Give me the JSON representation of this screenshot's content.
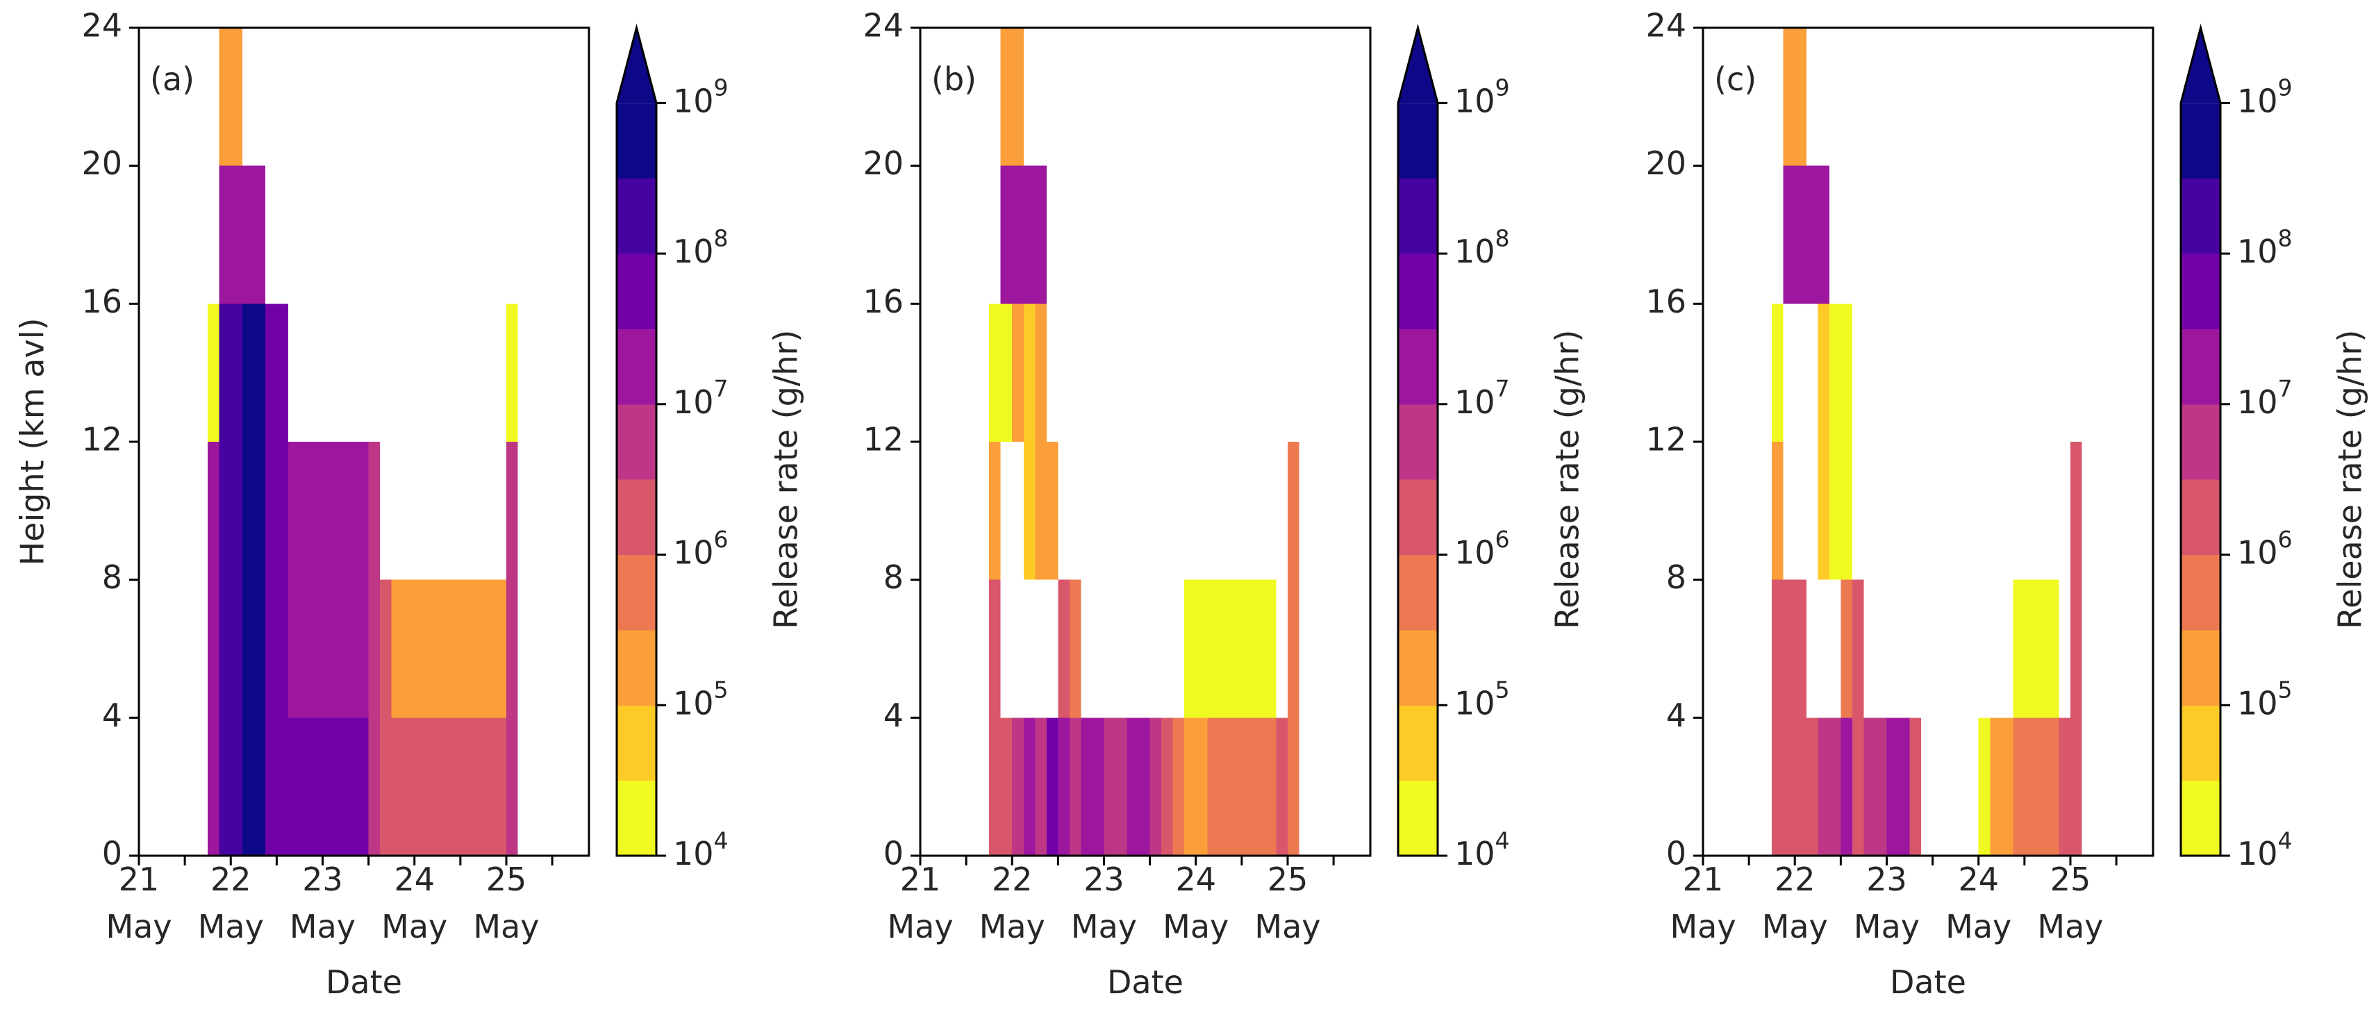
{
  "figure": {
    "cmap_stops": [
      "#f0f921",
      "#fdca26",
      "#fb9f3a",
      "#ed7953",
      "#d8576b",
      "#bd3786",
      "#9c179e",
      "#7201a8",
      "#46039f",
      "#0d0887"
    ]
  },
  "chart_data": [
    {
      "type": "heatmap",
      "panel_label": "(a)",
      "xlabel": "Date",
      "ylabel": "Height (km avl)",
      "xticks": [
        [
          "21",
          "May"
        ],
        [
          "22",
          "May"
        ],
        [
          "23",
          "May"
        ],
        [
          "24",
          "May"
        ],
        [
          "25",
          "May"
        ]
      ],
      "yticks": [
        "0",
        "4",
        "8",
        "12",
        "16",
        "20",
        "24"
      ],
      "xlim": [
        21.0,
        25.9
      ],
      "ylim": [
        0,
        24
      ],
      "colorbar_label": "Release rate (g/hr)",
      "colorbar_ticks": [
        [
          "10",
          "4"
        ],
        [
          "10",
          "5"
        ],
        [
          "10",
          "6"
        ],
        [
          "10",
          "7"
        ],
        [
          "10",
          "8"
        ],
        [
          "10",
          "9"
        ]
      ],
      "colorbar_scale": "log",
      "colorbar_range": [
        10000,
        1000000000
      ],
      "colorbar_extend": "max",
      "cells": [
        {
          "x0": 21.75,
          "x1": 21.875,
          "y0": 0,
          "y1": 12,
          "rate": 30000000
        },
        {
          "x0": 21.75,
          "x1": 21.875,
          "y0": 12,
          "y1": 16,
          "rate": 10000
        },
        {
          "x0": 21.875,
          "x1": 22.125,
          "y0": 0,
          "y1": 16,
          "rate": 300000000
        },
        {
          "x0": 22.125,
          "x1": 22.375,
          "y0": 0,
          "y1": 16,
          "rate": 500000000
        },
        {
          "x0": 21.875,
          "x1": 22.375,
          "y0": 16,
          "y1": 20,
          "rate": 20000000
        },
        {
          "x0": 21.875,
          "x1": 22.125,
          "y0": 20,
          "y1": 24,
          "rate": 100000
        },
        {
          "x0": 22.375,
          "x1": 22.625,
          "y0": 0,
          "y1": 16,
          "rate": 50000000
        },
        {
          "x0": 22.625,
          "x1": 23.5,
          "y0": 0,
          "y1": 4,
          "rate": 40000000
        },
        {
          "x0": 22.625,
          "x1": 23.5,
          "y0": 4,
          "y1": 12,
          "rate": 20000000
        },
        {
          "x0": 23.5,
          "x1": 23.625,
          "y0": 0,
          "y1": 12,
          "rate": 5000000
        },
        {
          "x0": 23.625,
          "x1": 23.75,
          "y0": 0,
          "y1": 8,
          "rate": 2000000
        },
        {
          "x0": 23.75,
          "x1": 25.0,
          "y0": 0,
          "y1": 4,
          "rate": 2000000
        },
        {
          "x0": 23.75,
          "x1": 25.0,
          "y0": 4,
          "y1": 8,
          "rate": 150000
        },
        {
          "x0": 25.0,
          "x1": 25.125,
          "y0": 0,
          "y1": 12,
          "rate": 5000000
        },
        {
          "x0": 25.0,
          "x1": 25.125,
          "y0": 12,
          "y1": 16,
          "rate": 10000
        }
      ]
    },
    {
      "type": "heatmap",
      "panel_label": "(b)",
      "xlabel": "Date",
      "ylabel": "",
      "xticks": [
        [
          "21",
          "May"
        ],
        [
          "22",
          "May"
        ],
        [
          "23",
          "May"
        ],
        [
          "24",
          "May"
        ],
        [
          "25",
          "May"
        ]
      ],
      "yticks": [
        "0",
        "4",
        "8",
        "12",
        "16",
        "20",
        "24"
      ],
      "xlim": [
        21.0,
        25.9
      ],
      "ylim": [
        0,
        24
      ],
      "colorbar_label": "Release rate (g/hr)",
      "colorbar_ticks": [
        [
          "10",
          "4"
        ],
        [
          "10",
          "5"
        ],
        [
          "10",
          "6"
        ],
        [
          "10",
          "7"
        ],
        [
          "10",
          "8"
        ],
        [
          "10",
          "9"
        ]
      ],
      "colorbar_scale": "log",
      "colorbar_range": [
        10000,
        1000000000
      ],
      "colorbar_extend": "max",
      "cells": [
        {
          "x0": 21.75,
          "x1": 21.875,
          "y0": 0,
          "y1": 8,
          "rate": 1500000
        },
        {
          "x0": 21.75,
          "x1": 21.875,
          "y0": 8,
          "y1": 12,
          "rate": 300000
        },
        {
          "x0": 21.75,
          "x1": 21.875,
          "y0": 12,
          "y1": 16,
          "rate": 10000
        },
        {
          "x0": 21.875,
          "x1": 22.0,
          "y0": 0,
          "y1": 4,
          "rate": 3000000
        },
        {
          "x0": 21.875,
          "x1": 22.0,
          "y0": 12,
          "y1": 16,
          "rate": 20000
        },
        {
          "x0": 21.875,
          "x1": 22.125,
          "y0": 20,
          "y1": 24,
          "rate": 100000
        },
        {
          "x0": 21.875,
          "x1": 22.375,
          "y0": 16,
          "y1": 20,
          "rate": 20000000
        },
        {
          "x0": 22.0,
          "x1": 22.125,
          "y0": 0,
          "y1": 4,
          "rate": 5000000
        },
        {
          "x0": 22.0,
          "x1": 22.125,
          "y0": 12,
          "y1": 16,
          "rate": 100000
        },
        {
          "x0": 22.125,
          "x1": 22.25,
          "y0": 0,
          "y1": 4,
          "rate": 30000000
        },
        {
          "x0": 22.125,
          "x1": 22.25,
          "y0": 8,
          "y1": 16,
          "rate": 50000
        },
        {
          "x0": 22.25,
          "x1": 22.375,
          "y0": 0,
          "y1": 4,
          "rate": 5000000
        },
        {
          "x0": 22.25,
          "x1": 22.375,
          "y0": 8,
          "y1": 16,
          "rate": 300000
        },
        {
          "x0": 22.375,
          "x1": 22.5,
          "y0": 0,
          "y1": 4,
          "rate": 50000000
        },
        {
          "x0": 22.375,
          "x1": 22.5,
          "y0": 8,
          "y1": 12,
          "rate": 100000
        },
        {
          "x0": 22.5,
          "x1": 22.625,
          "y0": 0,
          "y1": 4,
          "rate": 20000000
        },
        {
          "x0": 22.5,
          "x1": 22.625,
          "y0": 4,
          "y1": 8,
          "rate": 3000000
        },
        {
          "x0": 22.625,
          "x1": 22.75,
          "y0": 0,
          "y1": 4,
          "rate": 5000000
        },
        {
          "x0": 22.625,
          "x1": 22.75,
          "y0": 4,
          "y1": 8,
          "rate": 400000
        },
        {
          "x0": 22.75,
          "x1": 23.0,
          "y0": 0,
          "y1": 4,
          "rate": 20000000
        },
        {
          "x0": 23.0,
          "x1": 23.25,
          "y0": 0,
          "y1": 4,
          "rate": 8000000
        },
        {
          "x0": 23.25,
          "x1": 23.5,
          "y0": 0,
          "y1": 4,
          "rate": 20000000
        },
        {
          "x0": 23.5,
          "x1": 23.625,
          "y0": 0,
          "y1": 4,
          "rate": 5000000
        },
        {
          "x0": 23.625,
          "x1": 23.75,
          "y0": 0,
          "y1": 4,
          "rate": 2000000
        },
        {
          "x0": 23.75,
          "x1": 23.875,
          "y0": 0,
          "y1": 4,
          "rate": 800000
        },
        {
          "x0": 23.875,
          "x1": 24.125,
          "y0": 0,
          "y1": 4,
          "rate": 150000
        },
        {
          "x0": 24.125,
          "x1": 24.875,
          "y0": 0,
          "y1": 4,
          "rate": 800000
        },
        {
          "x0": 23.875,
          "x1": 24.875,
          "y0": 4,
          "y1": 8,
          "rate": 10000
        },
        {
          "x0": 24.875,
          "x1": 25.0,
          "y0": 0,
          "y1": 4,
          "rate": 3000000
        },
        {
          "x0": 25.0,
          "x1": 25.125,
          "y0": 0,
          "y1": 12,
          "rate": 800000
        }
      ]
    },
    {
      "type": "heatmap",
      "panel_label": "(c)",
      "xlabel": "Date",
      "ylabel": "",
      "xticks": [
        [
          "21",
          "May"
        ],
        [
          "22",
          "May"
        ],
        [
          "23",
          "May"
        ],
        [
          "24",
          "May"
        ],
        [
          "25",
          "May"
        ]
      ],
      "yticks": [
        "0",
        "4",
        "8",
        "12",
        "16",
        "20",
        "24"
      ],
      "xlim": [
        21.0,
        25.9
      ],
      "ylim": [
        0,
        24
      ],
      "colorbar_label": "Release rate (g/hr)",
      "colorbar_ticks": [
        [
          "10",
          "4"
        ],
        [
          "10",
          "5"
        ],
        [
          "10",
          "6"
        ],
        [
          "10",
          "7"
        ],
        [
          "10",
          "8"
        ],
        [
          "10",
          "9"
        ]
      ],
      "colorbar_scale": "log",
      "colorbar_range": [
        10000,
        1000000000
      ],
      "colorbar_extend": "max",
      "cells": [
        {
          "x0": 21.75,
          "x1": 21.875,
          "y0": 0,
          "y1": 8,
          "rate": 1500000
        },
        {
          "x0": 21.75,
          "x1": 21.875,
          "y0": 8,
          "y1": 12,
          "rate": 300000
        },
        {
          "x0": 21.75,
          "x1": 21.875,
          "y0": 12,
          "y1": 16,
          "rate": 10000
        },
        {
          "x0": 21.875,
          "x1": 22.125,
          "y0": 0,
          "y1": 8,
          "rate": 2000000
        },
        {
          "x0": 21.875,
          "x1": 22.125,
          "y0": 20,
          "y1": 24,
          "rate": 100000
        },
        {
          "x0": 21.875,
          "x1": 22.375,
          "y0": 16,
          "y1": 20,
          "rate": 20000000
        },
        {
          "x0": 22.125,
          "x1": 22.25,
          "y0": 0,
          "y1": 4,
          "rate": 3000000
        },
        {
          "x0": 22.25,
          "x1": 22.375,
          "y0": 0,
          "y1": 4,
          "rate": 5000000
        },
        {
          "x0": 22.25,
          "x1": 22.375,
          "y0": 8,
          "y1": 16,
          "rate": 40000
        },
        {
          "x0": 22.375,
          "x1": 22.5,
          "y0": 0,
          "y1": 4,
          "rate": 5000000
        },
        {
          "x0": 22.375,
          "x1": 22.625,
          "y0": 8,
          "y1": 16,
          "rate": 20000
        },
        {
          "x0": 22.5,
          "x1": 22.625,
          "y0": 0,
          "y1": 4,
          "rate": 15000000
        },
        {
          "x0": 22.5,
          "x1": 22.625,
          "y0": 4,
          "y1": 8,
          "rate": 500000
        },
        {
          "x0": 22.625,
          "x1": 22.75,
          "y0": 0,
          "y1": 8,
          "rate": 3000000
        },
        {
          "x0": 22.75,
          "x1": 23.0,
          "y0": 0,
          "y1": 4,
          "rate": 8000000
        },
        {
          "x0": 23.0,
          "x1": 23.25,
          "y0": 0,
          "y1": 4,
          "rate": 20000000
        },
        {
          "x0": 23.25,
          "x1": 23.375,
          "y0": 0,
          "y1": 4,
          "rate": 2000000
        },
        {
          "x0": 24.0,
          "x1": 24.125,
          "y0": 0,
          "y1": 4,
          "rate": 10000
        },
        {
          "x0": 24.125,
          "x1": 24.25,
          "y0": 0,
          "y1": 4,
          "rate": 300000
        },
        {
          "x0": 24.25,
          "x1": 24.375,
          "y0": 0,
          "y1": 4,
          "rate": 150000
        },
        {
          "x0": 24.375,
          "x1": 24.875,
          "y0": 0,
          "y1": 4,
          "rate": 800000
        },
        {
          "x0": 24.375,
          "x1": 24.875,
          "y0": 4,
          "y1": 8,
          "rate": 10000
        },
        {
          "x0": 24.875,
          "x1": 25.0,
          "y0": 0,
          "y1": 4,
          "rate": 1500000
        },
        {
          "x0": 25.0,
          "x1": 25.125,
          "y0": 0,
          "y1": 12,
          "rate": 1500000
        }
      ]
    }
  ]
}
